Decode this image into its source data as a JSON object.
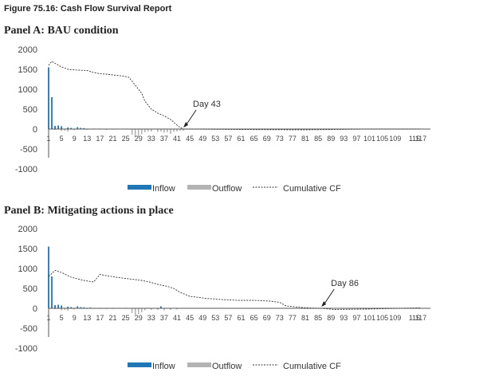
{
  "figure_title": "Figure 75.16: Cash Flow Survival Report",
  "legend": {
    "inflow": "Inflow",
    "outflow": "Outflow",
    "cumulative": "Cumulative CF"
  },
  "colors": {
    "inflow": "#1f77b4",
    "outflow": "#b3b3b3",
    "cumulative": "#333333"
  },
  "chart_data": [
    {
      "type": "bar",
      "title": "Panel A: BAU condition",
      "ylim": [
        -1000,
        2000
      ],
      "yticks": [
        2000,
        1500,
        1000,
        500,
        0,
        -500,
        -1000
      ],
      "xticks": [
        1,
        5,
        9,
        13,
        17,
        21,
        25,
        29,
        33,
        37,
        41,
        45,
        49,
        53,
        57,
        61,
        65,
        69,
        73,
        77,
        81,
        85,
        89,
        93,
        97,
        101,
        105,
        109,
        115,
        117
      ],
      "x_range": [
        1,
        120
      ],
      "annotation": {
        "text": "Day 43",
        "x": 43,
        "y": 0
      },
      "series": [
        {
          "name": "Inflow",
          "type": "bar",
          "points": [
            [
              1,
              1550
            ],
            [
              2,
              800
            ],
            [
              3,
              80
            ],
            [
              4,
              90
            ],
            [
              5,
              70
            ],
            [
              7,
              40
            ],
            [
              8,
              30
            ],
            [
              10,
              50
            ],
            [
              11,
              30
            ],
            [
              12,
              25
            ]
          ]
        },
        {
          "name": "Outflow",
          "type": "bar",
          "points": [
            [
              3,
              -20
            ],
            [
              5,
              -50
            ],
            [
              6,
              -40
            ],
            [
              7,
              -60
            ],
            [
              9,
              -30
            ],
            [
              13,
              -20
            ],
            [
              15,
              -15
            ],
            [
              17,
              -15
            ],
            [
              19,
              -20
            ],
            [
              21,
              -15
            ],
            [
              25,
              -15
            ],
            [
              27,
              -140
            ],
            [
              28,
              -200
            ],
            [
              29,
              -190
            ],
            [
              30,
              -130
            ],
            [
              31,
              -80
            ],
            [
              32,
              -60
            ],
            [
              33,
              -60
            ],
            [
              35,
              -70
            ],
            [
              36,
              -60
            ],
            [
              37,
              -90
            ],
            [
              38,
              -80
            ],
            [
              39,
              -120
            ],
            [
              40,
              -70
            ],
            [
              41,
              -60
            ],
            [
              42,
              -40
            ],
            [
              43,
              -40
            ]
          ]
        },
        {
          "name": "Cumulative CF",
          "type": "line",
          "points": [
            [
              1,
              1600
            ],
            [
              2,
              1700
            ],
            [
              3,
              1650
            ],
            [
              5,
              1560
            ],
            [
              7,
              1500
            ],
            [
              10,
              1480
            ],
            [
              13,
              1470
            ],
            [
              15,
              1420
            ],
            [
              17,
              1390
            ],
            [
              20,
              1370
            ],
            [
              22,
              1350
            ],
            [
              24,
              1330
            ],
            [
              26,
              1300
            ],
            [
              27,
              1200
            ],
            [
              29,
              1000
            ],
            [
              30,
              900
            ],
            [
              31,
              700
            ],
            [
              32,
              600
            ],
            [
              33,
              500
            ],
            [
              35,
              400
            ],
            [
              37,
              330
            ],
            [
              39,
              240
            ],
            [
              41,
              100
            ],
            [
              42,
              40
            ],
            [
              43,
              0
            ],
            [
              45,
              0
            ],
            [
              60,
              -10
            ],
            [
              80,
              -20
            ],
            [
              100,
              0
            ],
            [
              117,
              0
            ]
          ]
        }
      ]
    },
    {
      "type": "bar",
      "title": "Panel B: Mitigating actions in place",
      "ylim": [
        -1000,
        2000
      ],
      "yticks": [
        2000,
        1500,
        1000,
        500,
        0,
        -500,
        -1000
      ],
      "xticks": [
        1,
        5,
        9,
        13,
        17,
        21,
        25,
        29,
        33,
        37,
        41,
        45,
        49,
        53,
        57,
        61,
        65,
        69,
        73,
        77,
        81,
        85,
        89,
        93,
        97,
        101,
        105,
        109,
        115,
        117
      ],
      "x_range": [
        1,
        120
      ],
      "annotation": {
        "text": "Day 86",
        "x": 86,
        "y": 0
      },
      "series": [
        {
          "name": "Inflow",
          "type": "bar",
          "points": [
            [
              1,
              1550
            ],
            [
              2,
              800
            ],
            [
              3,
              80
            ],
            [
              4,
              90
            ],
            [
              5,
              70
            ],
            [
              7,
              40
            ],
            [
              8,
              30
            ],
            [
              10,
              50
            ],
            [
              11,
              30
            ],
            [
              12,
              25
            ],
            [
              14,
              20
            ],
            [
              36,
              50
            ]
          ]
        },
        {
          "name": "Outflow",
          "type": "bar",
          "points": [
            [
              3,
              -20
            ],
            [
              5,
              -50
            ],
            [
              6,
              -40
            ],
            [
              7,
              -60
            ],
            [
              9,
              -30
            ],
            [
              13,
              -20
            ],
            [
              15,
              -15
            ],
            [
              17,
              -15
            ],
            [
              19,
              -20
            ],
            [
              21,
              -15
            ],
            [
              25,
              -15
            ],
            [
              27,
              -120
            ],
            [
              28,
              -170
            ],
            [
              29,
              -150
            ],
            [
              30,
              -100
            ],
            [
              31,
              -50
            ],
            [
              33,
              -40
            ],
            [
              35,
              -40
            ],
            [
              37,
              -50
            ],
            [
              39,
              -40
            ],
            [
              41,
              -30
            ]
          ]
        },
        {
          "name": "Cumulative CF",
          "type": "line",
          "points": [
            [
              1,
              800
            ],
            [
              3,
              950
            ],
            [
              5,
              900
            ],
            [
              8,
              780
            ],
            [
              12,
              700
            ],
            [
              15,
              660
            ],
            [
              17,
              850
            ],
            [
              19,
              820
            ],
            [
              22,
              780
            ],
            [
              25,
              750
            ],
            [
              28,
              720
            ],
            [
              30,
              700
            ],
            [
              33,
              650
            ],
            [
              35,
              600
            ],
            [
              38,
              550
            ],
            [
              40,
              500
            ],
            [
              42,
              400
            ],
            [
              45,
              300
            ],
            [
              50,
              250
            ],
            [
              55,
              220
            ],
            [
              60,
              200
            ],
            [
              65,
              200
            ],
            [
              70,
              180
            ],
            [
              73,
              150
            ],
            [
              75,
              60
            ],
            [
              80,
              20
            ],
            [
              83,
              5
            ],
            [
              86,
              0
            ],
            [
              90,
              -30
            ],
            [
              100,
              -20
            ],
            [
              110,
              0
            ],
            [
              117,
              10
            ]
          ]
        }
      ]
    }
  ]
}
